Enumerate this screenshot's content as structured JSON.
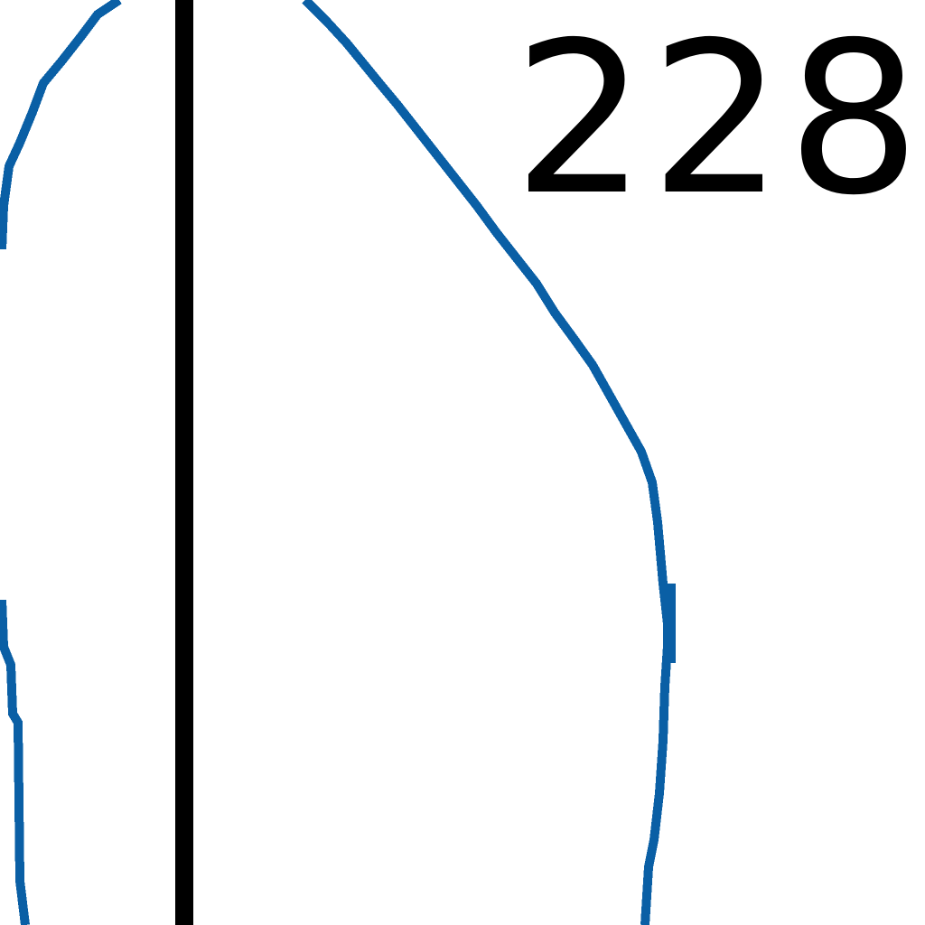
{
  "map": {
    "elevation_label": "228",
    "colors": {
      "background": "#ffffff",
      "contour_line": "#0a5fa5",
      "boundary_line": "#000000",
      "label": "#000000"
    }
  }
}
